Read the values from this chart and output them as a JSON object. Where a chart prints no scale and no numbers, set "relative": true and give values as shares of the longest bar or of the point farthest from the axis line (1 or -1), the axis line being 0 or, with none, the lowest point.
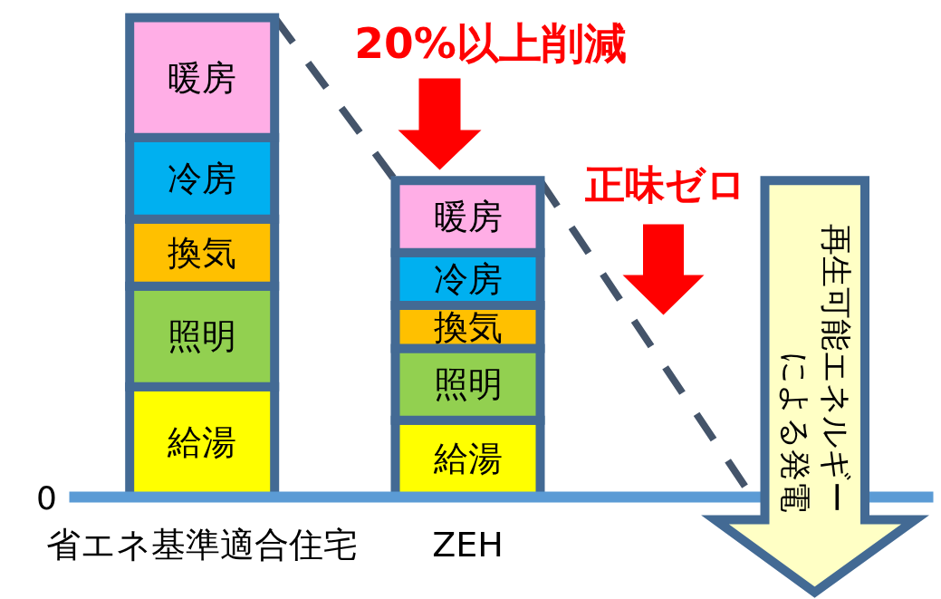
{
  "chart_data": {
    "type": "bar",
    "stacked": true,
    "relative": true,
    "categories": [
      "省エネ基準適合住宅",
      "ZEH"
    ],
    "series": [
      {
        "name": "給湯",
        "color": "#ffff00",
        "values": [
          0.23,
          0.16
        ]
      },
      {
        "name": "照明",
        "color": "#92d050",
        "values": [
          0.21,
          0.15
        ]
      },
      {
        "name": "換気",
        "color": "#ffc000",
        "values": [
          0.14,
          0.09
        ]
      },
      {
        "name": "冷房",
        "color": "#00b0f0",
        "values": [
          0.17,
          0.11
        ]
      },
      {
        "name": "暖房",
        "color": "#ffaee6",
        "values": [
          0.25,
          0.15
        ]
      }
    ],
    "annotations": [
      "20%以上削減",
      "正味ゼロ",
      "再生可能エネルギーによる発電",
      "0"
    ]
  }
}
